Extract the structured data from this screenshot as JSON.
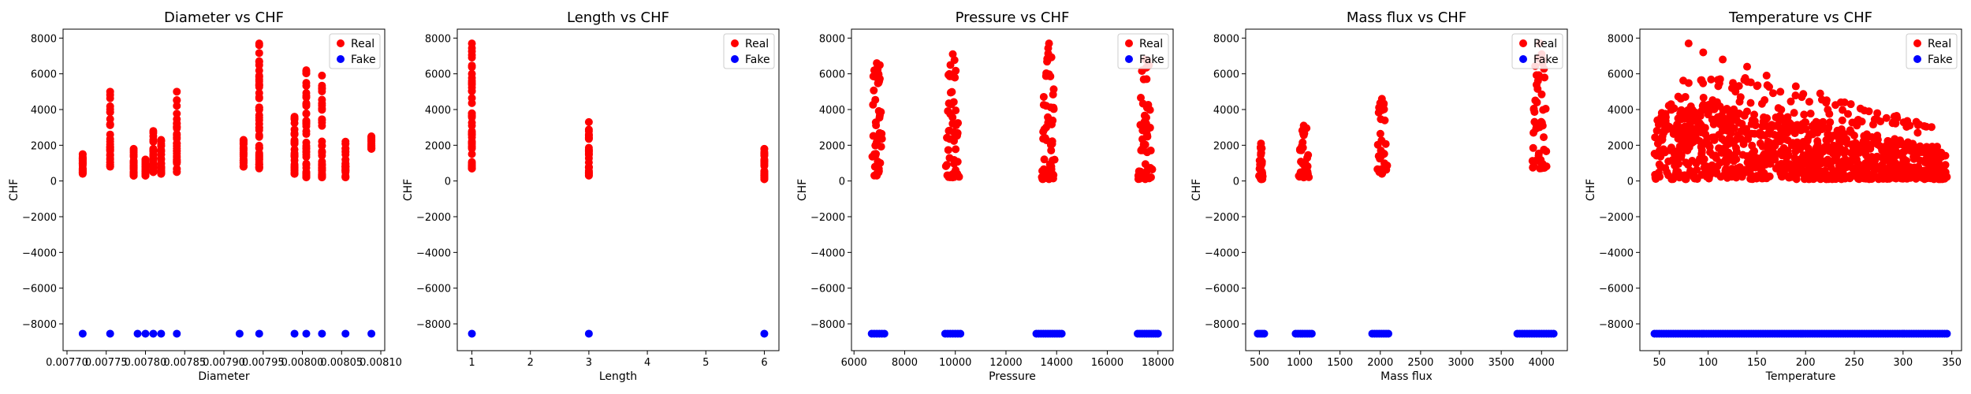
{
  "chart_data": [
    {
      "type": "scatter",
      "title": "Diameter vs CHF",
      "xlabel": "Diameter",
      "ylabel": "CHF",
      "xlim": [
        0.007695,
        0.008105
      ],
      "ylim": [
        -9500,
        8500
      ],
      "xticks": [
        0.0077,
        0.00775,
        0.0078,
        0.00785,
        0.0079,
        0.00795,
        0.008,
        0.00805,
        0.0081
      ],
      "xtick_labels": [
        "0.00770",
        "0.00775",
        "0.00780",
        "0.00785",
        "0.00790",
        "0.00795",
        "0.00800",
        "0.00805",
        "0.00810"
      ],
      "yticks": [
        -8000,
        -6000,
        -4000,
        -2000,
        0,
        2000,
        4000,
        6000,
        8000
      ],
      "legend_position": "upper-right",
      "series": [
        {
          "name": "Real",
          "color": "#ff0000",
          "clusters": [
            {
              "x": 0.00772,
              "ymin": 400,
              "ymax": 1500
            },
            {
              "x": 0.007755,
              "ymin": 800,
              "ymax": 5000
            },
            {
              "x": 0.007785,
              "ymin": 300,
              "ymax": 1800
            },
            {
              "x": 0.0078,
              "ymin": 300,
              "ymax": 1200
            },
            {
              "x": 0.00781,
              "ymin": 500,
              "ymax": 2800
            },
            {
              "x": 0.00782,
              "ymin": 400,
              "ymax": 2300
            },
            {
              "x": 0.00784,
              "ymin": 500,
              "ymax": 5000
            },
            {
              "x": 0.007925,
              "ymin": 800,
              "ymax": 2300
            },
            {
              "x": 0.007945,
              "ymin": 700,
              "ymax": 7700
            },
            {
              "x": 0.00799,
              "ymin": 400,
              "ymax": 3600
            },
            {
              "x": 0.008005,
              "ymin": 200,
              "ymax": 6200
            },
            {
              "x": 0.008025,
              "ymin": 200,
              "ymax": 5900
            },
            {
              "x": 0.008055,
              "ymin": 200,
              "ymax": 2200
            },
            {
              "x": 0.008088,
              "ymin": 1800,
              "ymax": 2500
            }
          ]
        },
        {
          "name": "Fake",
          "color": "#0000ff",
          "y": -8550,
          "x": [
            0.00772,
            0.007755,
            0.00779,
            0.0078,
            0.00781,
            0.00782,
            0.00784,
            0.00792,
            0.007945,
            0.00799,
            0.008005,
            0.008025,
            0.008055,
            0.008088
          ]
        }
      ]
    },
    {
      "type": "scatter",
      "title": "Length vs CHF",
      "xlabel": "Length",
      "ylabel": "CHF",
      "xlim": [
        0.75,
        6.25
      ],
      "ylim": [
        -9500,
        8500
      ],
      "xticks": [
        1,
        2,
        3,
        4,
        5,
        6
      ],
      "xtick_labels": [
        "1",
        "2",
        "3",
        "4",
        "5",
        "6"
      ],
      "yticks": [
        -8000,
        -6000,
        -4000,
        -2000,
        0,
        2000,
        4000,
        6000,
        8000
      ],
      "legend_position": "upper-right",
      "series": [
        {
          "name": "Real",
          "color": "#ff0000",
          "clusters": [
            {
              "x": 1,
              "ymin": 700,
              "ymax": 7700
            },
            {
              "x": 3,
              "ymin": 300,
              "ymax": 3300
            },
            {
              "x": 6,
              "ymin": 100,
              "ymax": 1800
            }
          ]
        },
        {
          "name": "Fake",
          "color": "#0000ff",
          "y": -8550,
          "x": [
            1,
            3,
            6
          ]
        }
      ]
    },
    {
      "type": "scatter",
      "title": "Pressure vs CHF",
      "xlabel": "Pressure",
      "ylabel": "CHF",
      "xlim": [
        5900,
        18600
      ],
      "ylim": [
        -9500,
        8500
      ],
      "xticks": [
        6000,
        8000,
        10000,
        12000,
        14000,
        16000,
        18000
      ],
      "xtick_labels": [
        "6000",
        "8000",
        "10000",
        "12000",
        "14000",
        "16000",
        "18000"
      ],
      "yticks": [
        -8000,
        -6000,
        -4000,
        -2000,
        0,
        2000,
        4000,
        6000,
        8000
      ],
      "legend_position": "upper-right",
      "series": [
        {
          "name": "Real",
          "color": "#ff0000",
          "clusters": [
            {
              "x": 6900,
              "spread": 500,
              "ymin": 300,
              "ymax": 6600
            },
            {
              "x": 9900,
              "spread": 600,
              "ymin": 200,
              "ymax": 7100
            },
            {
              "x": 13700,
              "spread": 600,
              "ymin": 100,
              "ymax": 7700
            },
            {
              "x": 17500,
              "spread": 600,
              "ymin": 100,
              "ymax": 6800
            }
          ]
        },
        {
          "name": "Fake",
          "color": "#0000ff",
          "y": -8550,
          "ranges": [
            [
              6700,
              7200
            ],
            [
              9600,
              10200
            ],
            [
              13200,
              14200
            ],
            [
              17200,
              18000
            ]
          ]
        }
      ]
    },
    {
      "type": "scatter",
      "title": "Mass flux vs CHF",
      "xlabel": "Mass flux",
      "ylabel": "CHF",
      "xlim": [
        330,
        4320
      ],
      "ylim": [
        -9500,
        8500
      ],
      "xticks": [
        500,
        1000,
        1500,
        2000,
        2500,
        3000,
        3500,
        4000
      ],
      "xtick_labels": [
        "500",
        "1000",
        "1500",
        "2000",
        "2500",
        "3000",
        "3500",
        "4000"
      ],
      "yticks": [
        -8000,
        -6000,
        -4000,
        -2000,
        0,
        2000,
        4000,
        6000,
        8000
      ],
      "legend_position": "upper-right",
      "series": [
        {
          "name": "Real",
          "color": "#ff0000",
          "clusters": [
            {
              "x": 520,
              "spread": 50,
              "ymin": 100,
              "ymax": 2100
            },
            {
              "x": 1050,
              "spread": 150,
              "ymin": 200,
              "ymax": 3100
            },
            {
              "x": 2020,
              "spread": 150,
              "ymin": 400,
              "ymax": 4600
            },
            {
              "x": 3980,
              "spread": 200,
              "ymin": 700,
              "ymax": 7700
            }
          ]
        },
        {
          "name": "Fake",
          "color": "#0000ff",
          "y": -8550,
          "ranges": [
            [
              480,
              560
            ],
            [
              950,
              1150
            ],
            [
              1900,
              2100
            ],
            [
              3700,
              4150
            ]
          ]
        }
      ]
    },
    {
      "type": "scatter",
      "title": "Temperature vs CHF",
      "xlabel": "Temperature",
      "ylabel": "CHF",
      "xlim": [
        30,
        360
      ],
      "ylim": [
        -9500,
        8500
      ],
      "xticks": [
        50,
        100,
        150,
        200,
        250,
        300,
        350
      ],
      "xtick_labels": [
        "50",
        "100",
        "150",
        "200",
        "250",
        "300",
        "350"
      ],
      "yticks": [
        -8000,
        -6000,
        -4000,
        -2000,
        0,
        2000,
        4000,
        6000,
        8000
      ],
      "legend_position": "upper-right",
      "series": [
        {
          "name": "Real",
          "color": "#ff0000",
          "cloud": {
            "xmin": 45,
            "xmax": 345,
            "ymin": 100
          },
          "outliers": [
            [
              80,
              7700
            ],
            [
              95,
              7200
            ],
            [
              115,
              6800
            ],
            [
              140,
              6400
            ],
            [
              160,
              5900
            ],
            [
              190,
              5300
            ],
            [
              215,
              4900
            ],
            [
              240,
              4400
            ],
            [
              265,
              3900
            ],
            [
              290,
              3300
            ],
            [
              315,
              2700
            ],
            [
              48,
              3400
            ],
            [
              62,
              4300
            ],
            [
              72,
              4600
            ]
          ]
        },
        {
          "name": "Fake",
          "color": "#0000ff",
          "y": -8550,
          "ranges": [
            [
              45,
              345
            ]
          ]
        }
      ]
    }
  ]
}
